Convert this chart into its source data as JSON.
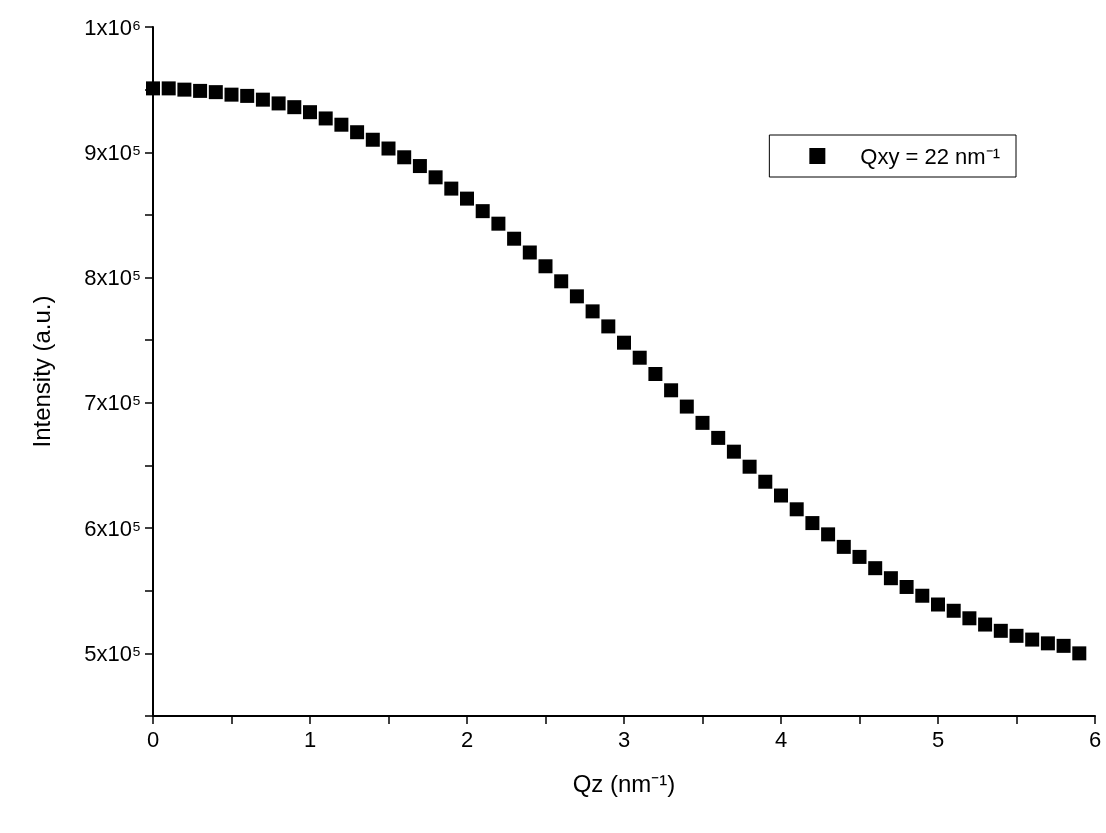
{
  "chart_data": {
    "type": "scatter",
    "xlabel": "Qz (nm⁻¹)",
    "ylabel": "Intensity (a.u.)",
    "marker": "square",
    "legend": "top right",
    "grid": false,
    "xlim": [
      0,
      6
    ],
    "ylim": [
      450000,
      1000000
    ],
    "xticks": [
      0,
      {
        "value": 0.5,
        "label": null
      },
      1,
      {
        "value": 1.5,
        "label": null
      },
      2,
      {
        "value": 2.5,
        "label": null
      },
      3,
      {
        "value": 3.5,
        "label": null
      },
      4,
      {
        "value": 4.5,
        "label": null
      },
      5,
      {
        "value": 5.5,
        "label": null
      },
      6
    ],
    "yticks": [
      {
        "value": 450000,
        "label": null
      },
      {
        "value": 500000,
        "label": "5x10⁵"
      },
      {
        "value": 550000,
        "label": null
      },
      {
        "value": 600000,
        "label": "6x10⁵"
      },
      {
        "value": 650000,
        "label": null
      },
      {
        "value": 700000,
        "label": "7x10⁵"
      },
      {
        "value": 750000,
        "label": null
      },
      {
        "value": 800000,
        "label": "8x10⁵"
      },
      {
        "value": 850000,
        "label": null
      },
      {
        "value": 900000,
        "label": "9x10⁵"
      },
      {
        "value": 950000,
        "label": null
      },
      {
        "value": 1000000,
        "label": "1x10⁶"
      }
    ],
    "x": [
      0,
      0.1,
      0.2,
      0.3,
      0.4,
      0.5,
      0.6,
      0.7,
      0.8,
      0.9,
      1.0,
      1.1,
      1.2,
      1.3,
      1.4,
      1.5,
      1.6,
      1.7,
      1.8,
      1.9,
      2.0,
      2.1,
      2.2,
      2.3,
      2.4,
      2.5,
      2.6,
      2.7,
      2.8,
      2.9,
      3.0,
      3.1,
      3.2,
      3.3,
      3.4,
      3.5,
      3.6,
      3.7,
      3.8,
      3.9,
      4.0,
      4.1,
      4.2,
      4.3,
      4.4,
      4.5,
      4.6,
      4.7,
      4.8,
      4.9,
      5.0,
      5.1,
      5.2,
      5.3,
      5.4,
      5.5,
      5.6,
      5.7,
      5.8,
      5.9
    ],
    "series": [
      {
        "name": "Qxy = 22 nm⁻¹",
        "color": "#000000",
        "values": [
          951000,
          951000,
          950000,
          949000,
          948000,
          946000,
          945000,
          942000,
          939000,
          936000,
          932000,
          927000,
          922000,
          916000,
          910000,
          903000,
          896000,
          889000,
          880000,
          871000,
          863000,
          853000,
          843000,
          831000,
          820000,
          809000,
          797000,
          785000,
          773000,
          761000,
          748000,
          736000,
          723000,
          710000,
          697000,
          684000,
          672000,
          661000,
          649000,
          637000,
          626000,
          615000,
          604000,
          595000,
          585000,
          577000,
          568000,
          560000,
          553000,
          546000,
          539000,
          534000,
          528000,
          523000,
          518000,
          514000,
          511000,
          508000,
          506000,
          500000
        ]
      }
    ]
  }
}
